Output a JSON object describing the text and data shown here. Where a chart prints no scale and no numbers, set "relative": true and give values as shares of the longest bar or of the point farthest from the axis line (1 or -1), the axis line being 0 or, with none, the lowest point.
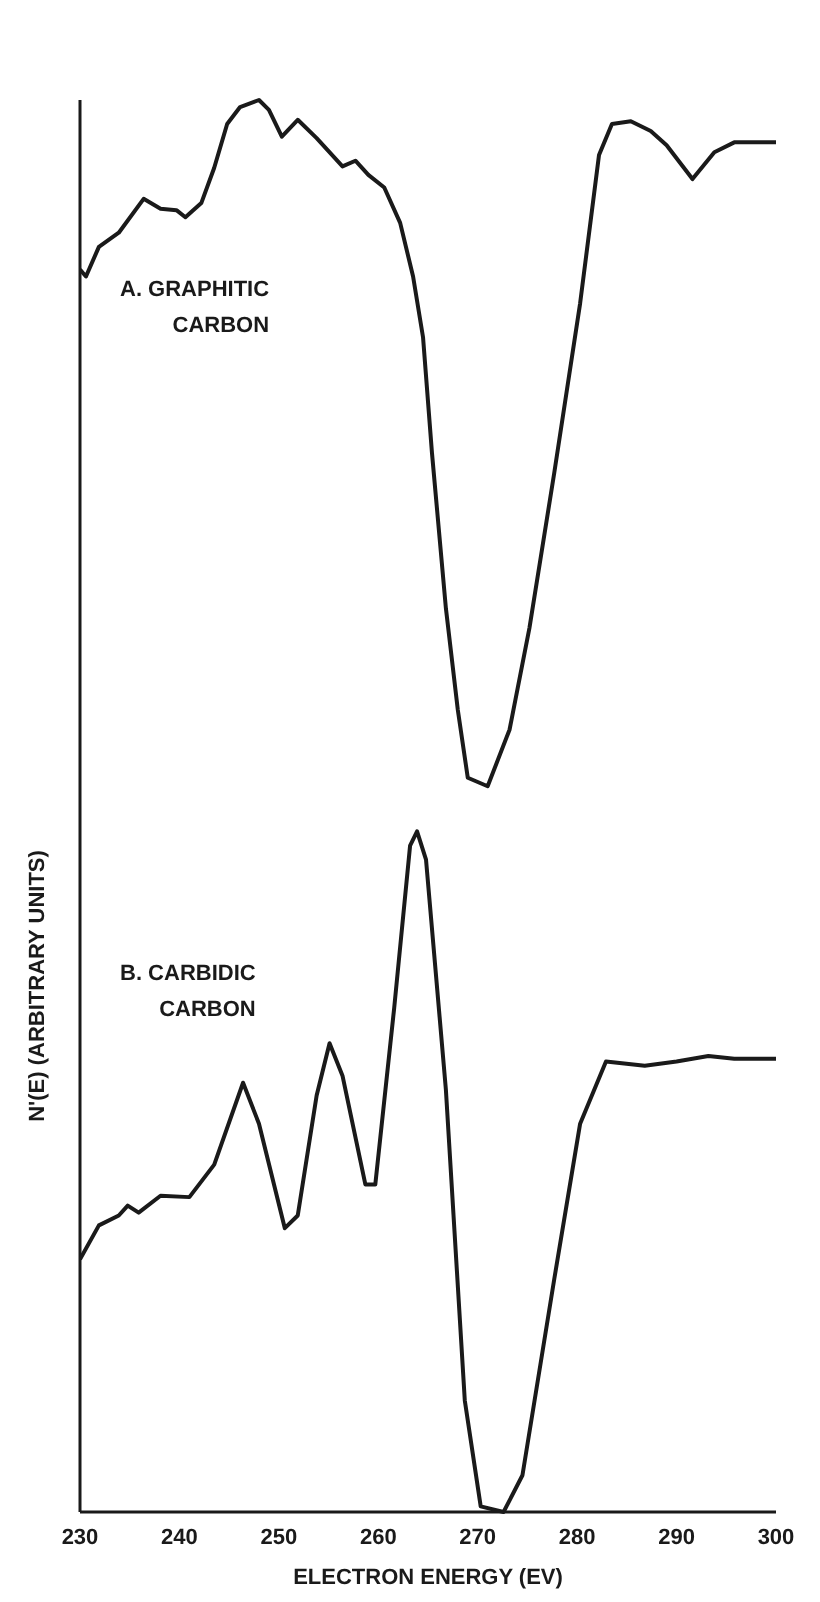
{
  "chart_data": {
    "type": "line",
    "relative": true,
    "xlabel": "ELECTRON ENERGY (EV)",
    "ylabel": "N'(E) (ARBITRARY UNITS)",
    "xlim": [
      230,
      300
    ],
    "xticks": [
      230,
      240,
      250,
      260,
      270,
      280,
      290,
      300
    ],
    "series": [
      {
        "name": "A. GRAPHITIC CARBON",
        "color": "#1a1a1a",
        "x": [
          230,
          230.6,
          231.9,
          233.9,
          236.4,
          238.1,
          239.7,
          240.6,
          242.2,
          243.5,
          244.8,
          246.1,
          248,
          249,
          250.3,
          251.9,
          253.8,
          256.4,
          257.7,
          259,
          260.6,
          262.2,
          263.5,
          264.5,
          265.4,
          266.8,
          268,
          269,
          271,
          273.2,
          275.2,
          277.7,
          280.3,
          282.2,
          283.5,
          285.4,
          287.4,
          289,
          291.6,
          293.8,
          295.8,
          300
        ],
        "values": [
          0.88,
          0.875,
          0.896,
          0.906,
          0.93,
          0.923,
          0.922,
          0.917,
          0.927,
          0.952,
          0.983,
          0.995,
          1,
          0.993,
          0.974,
          0.986,
          0.973,
          0.953,
          0.957,
          0.947,
          0.938,
          0.913,
          0.875,
          0.832,
          0.75,
          0.64,
          0.568,
          0.52,
          0.514,
          0.554,
          0.626,
          0.736,
          0.856,
          0.961,
          0.983,
          0.985,
          0.978,
          0.968,
          0.944,
          0.963,
          0.97,
          0.97
        ]
      },
      {
        "name": "B. CARBIDIC CARBON",
        "color": "#1a1a1a",
        "x": [
          230,
          231.9,
          233.9,
          234.8,
          235.9,
          238.1,
          241,
          243.5,
          246.4,
          248,
          250.6,
          251.9,
          253.8,
          255.1,
          256.4,
          258.7,
          259.7,
          261.6,
          263.2,
          263.9,
          264.8,
          266.8,
          268.7,
          270.3,
          272.6,
          274.5,
          277.7,
          280.3,
          282.9,
          286.8,
          290,
          293.2,
          295.8,
          300
        ],
        "values": [
          0.179,
          0.203,
          0.21,
          0.217,
          0.212,
          0.224,
          0.223,
          0.246,
          0.304,
          0.275,
          0.201,
          0.21,
          0.295,
          0.332,
          0.309,
          0.232,
          0.232,
          0.357,
          0.472,
          0.482,
          0.462,
          0.299,
          0.079,
          0.004,
          0,
          0.026,
          0.165,
          0.275,
          0.319,
          0.316,
          0.319,
          0.323,
          0.321,
          0.321
        ]
      }
    ]
  }
}
